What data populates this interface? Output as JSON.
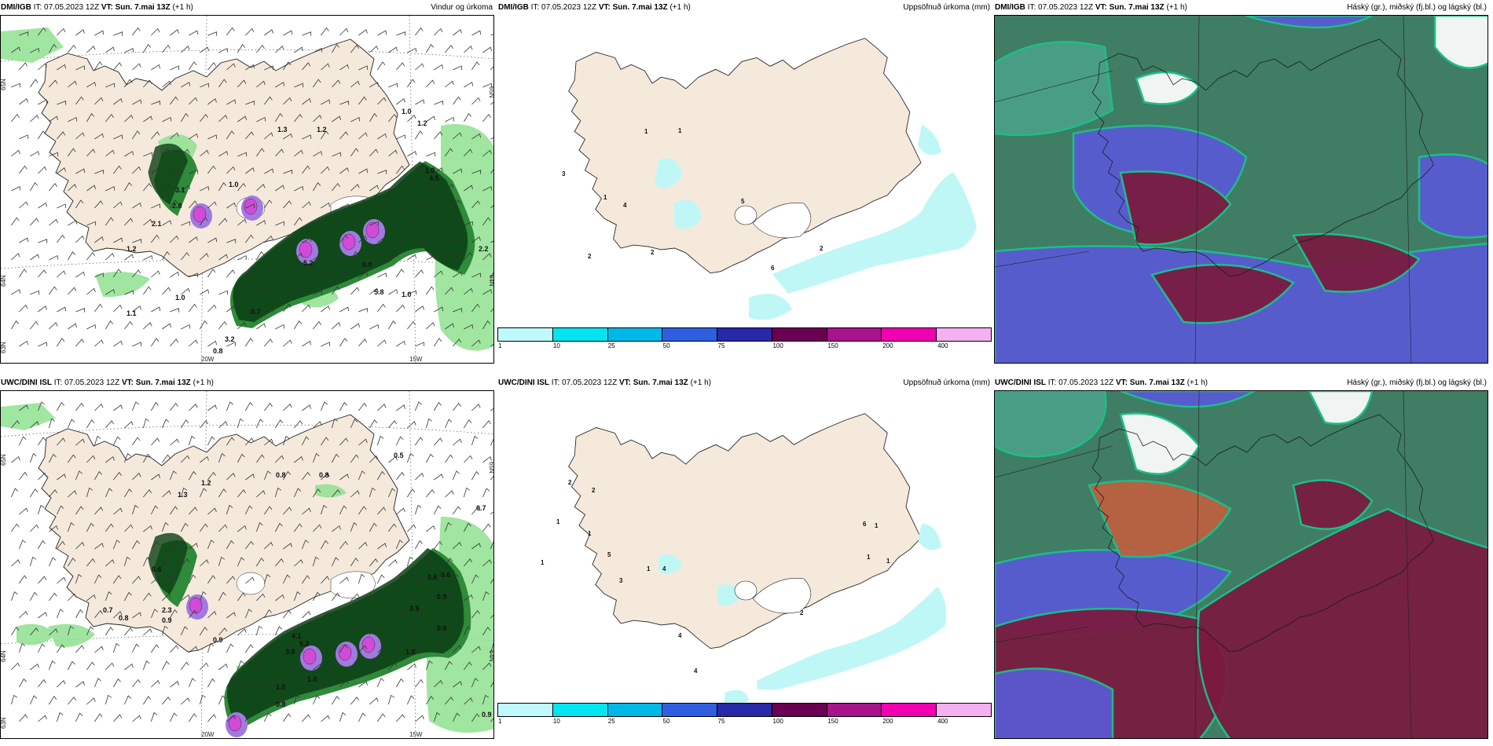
{
  "panels": [
    {
      "model": "DMI/IGB",
      "it_label": "IT: 07.05.2023 12Z",
      "vt_label": "VT: Sun. 7.mai 13Z",
      "lead": "(+1 h)",
      "product": "Vindur og úrkoma",
      "kind": "wind",
      "values": [
        "3.1",
        "2.8",
        "2.1",
        "1.2",
        "1.0",
        "1.3",
        "1.2",
        "1.0",
        "1.2",
        "1.0",
        "4.5",
        "2.2",
        "5.2",
        "8.0",
        "5.8",
        "1.0",
        "1.0",
        "1.1",
        "0.7",
        "3.2",
        "0.8"
      ],
      "grid_labels": [
        "65N",
        "64N",
        "63N",
        "20W",
        "15W",
        "65N",
        "64N"
      ]
    },
    {
      "model": "DMI/IGB",
      "it_label": "IT: 07.05.2023 12Z",
      "vt_label": "VT: Sun. 7.mai 13Z",
      "lead": "(+1 h)",
      "product": "Uppsöfnuð úrkoma (mm)",
      "kind": "accum",
      "values": [
        "1",
        "1",
        "3",
        "1",
        "4",
        "2",
        "2",
        "6",
        "5",
        "2"
      ]
    },
    {
      "model": "DMI/IGB",
      "it_label": "IT: 07.05.2023 12Z",
      "vt_label": "VT: Sun. 7.mai 13Z",
      "lead": "(+1 h)",
      "product": "Háský (gr.), miðský (fj.bl.) og lágský (bl.)",
      "kind": "cloud"
    },
    {
      "model": "UWC/DINI ISL",
      "it_label": "IT: 07.05.2023 12Z",
      "vt_label": "VT: Sun. 7.mai 13Z",
      "lead": "(+1 h)",
      "product": "",
      "kind": "wind",
      "values": [
        "0.8",
        "0.8",
        "0.5",
        "1.2",
        "1.3",
        "0.6",
        "2.3",
        "0.7",
        "0.8",
        "0.8",
        "0.9",
        "0.7",
        "3.9",
        "5.2",
        "4.1",
        "0.8",
        "1.0",
        "1.0",
        "0.6",
        "0.9",
        "0.6",
        "1.0",
        "0.9",
        "3.5",
        "0.9"
      ],
      "grid_labels": [
        "65N",
        "64N",
        "63N",
        "20W",
        "15W",
        "65N",
        "64N"
      ]
    },
    {
      "model": "UWC/DINI ISL",
      "it_label": "IT: 07.05.2023 12Z",
      "vt_label": "VT: Sun. 7.mai 13Z",
      "lead": "(+1 h)",
      "product": "Uppsöfnuð úrkoma (mm)",
      "kind": "accum",
      "values": [
        "2",
        "1",
        "2",
        "1",
        "1",
        "4",
        "3",
        "4",
        "1",
        "1",
        "5",
        "4",
        "2",
        "1",
        "6",
        "1"
      ]
    },
    {
      "model": "UWC/DINI ISL",
      "it_label": "IT: 07.05.2023 12Z",
      "vt_label": "VT: Sun. 7.mai 13Z",
      "lead": "(+1 h)",
      "product": "Háský (gr.), miðský (fj.bl.) og lágský (bl.)",
      "kind": "cloud"
    }
  ],
  "colorbar": {
    "ticks": [
      "1",
      "10",
      "25",
      "50",
      "75",
      "100",
      "150",
      "200",
      "400"
    ],
    "colors": [
      "#bff9fb",
      "#00e5f0",
      "#00b8e8",
      "#2f5fe0",
      "#2828a8",
      "#6a0052",
      "#a8128a",
      "#f000b0",
      "#f4b0f0"
    ]
  },
  "colors": {
    "land": "#f5e9dc",
    "precip_light": "#8fe08f",
    "precip_mid": "#2f8a3a",
    "precip_dark": "#0b3d14",
    "precip_violet": "#a07ae0",
    "precip_magenta": "#d24ad8",
    "accum_cyan": "#bff7f7",
    "cloud_high": "#3f7d65",
    "cloud_mid": "#5a5ad6",
    "cloud_low": "#7a1a3e"
  }
}
